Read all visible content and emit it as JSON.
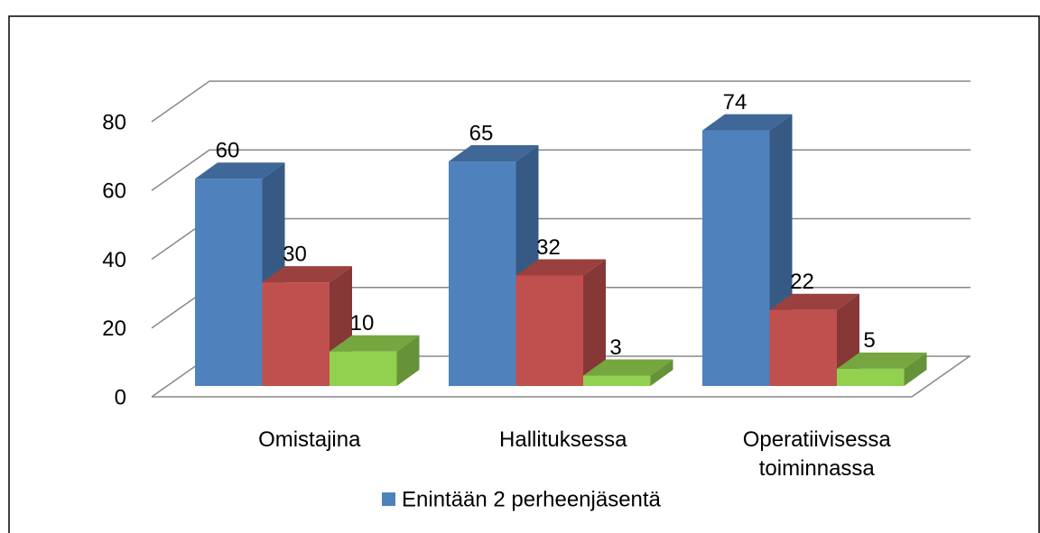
{
  "chart_data": {
    "type": "bar3d",
    "categories": [
      "Omistajina",
      "Hallituksessa",
      "Operatiivisessa toiminnassa"
    ],
    "series": [
      {
        "name": "Enintään 2 perheenjäsentä",
        "color": "#4f81bd",
        "values": [
          60,
          65,
          74
        ]
      },
      {
        "color": "#c0504d",
        "values": [
          30,
          32,
          22
        ]
      },
      {
        "color": "#92d050",
        "values": [
          10,
          3,
          5
        ]
      }
    ],
    "ylim": [
      0,
      80
    ],
    "yticks": [
      0,
      20,
      40,
      60,
      80
    ],
    "grid": true,
    "legend": "bottom"
  }
}
